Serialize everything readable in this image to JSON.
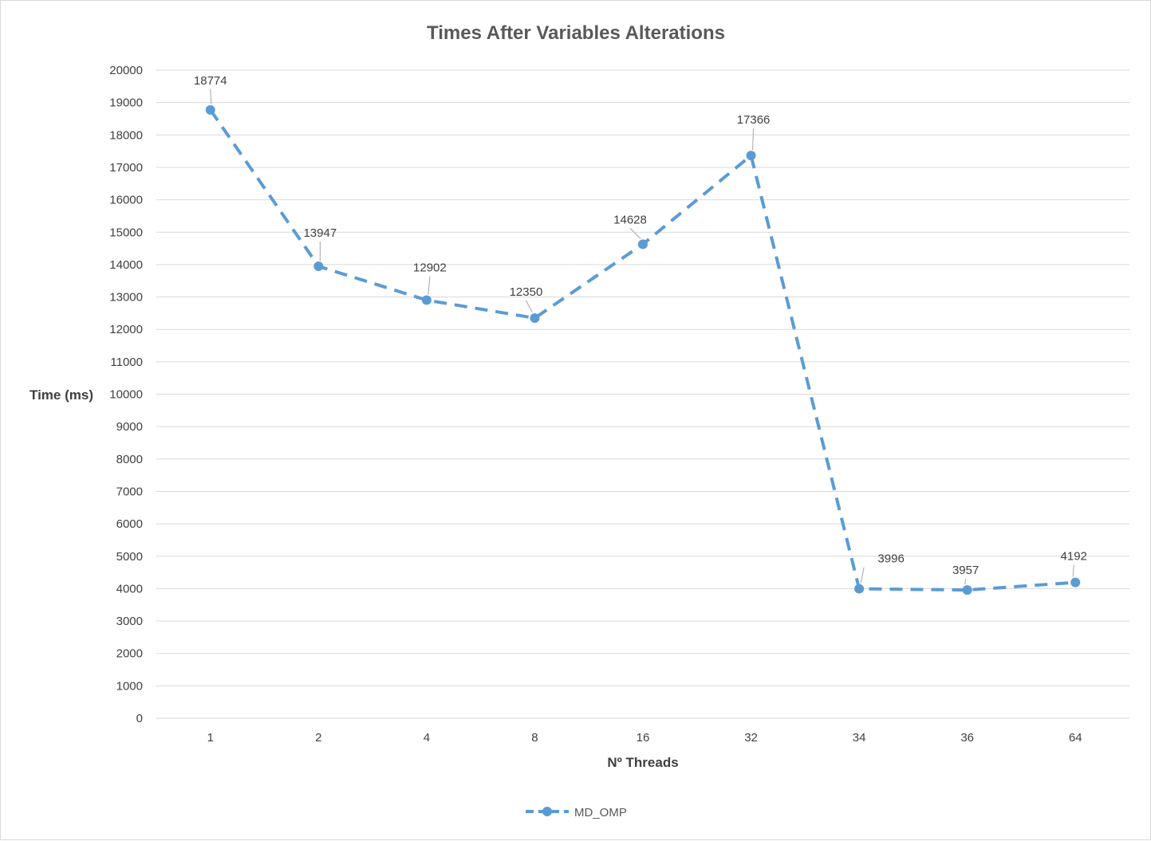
{
  "chart_data": {
    "type": "line",
    "title": "Times After Variables Alterations",
    "xlabel": "Nº Threads",
    "ylabel": "Time (ms)",
    "categories": [
      "1",
      "2",
      "4",
      "8",
      "16",
      "32",
      "34",
      "36",
      "64"
    ],
    "series": [
      {
        "name": "MD_OMP",
        "values": [
          18774,
          13947,
          12902,
          12350,
          14628,
          17366,
          3996,
          3957,
          4192
        ],
        "color": "#5B9BD5",
        "line_style": "dashed",
        "marker": "circle"
      }
    ],
    "ylim": [
      0,
      20000
    ],
    "ytick_step": 1000,
    "grid": "horizontal",
    "data_labels": true,
    "legend_position": "bottom"
  }
}
